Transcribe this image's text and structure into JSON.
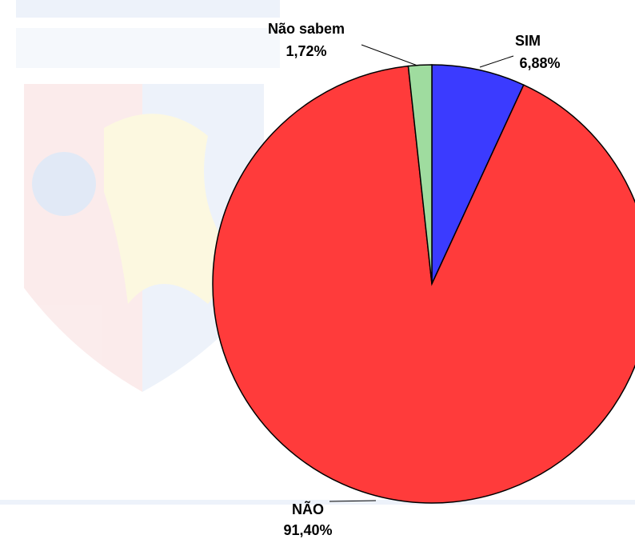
{
  "chart_data": {
    "type": "pie",
    "categories": [
      "SIM",
      "NÃO",
      "Não sabem"
    ],
    "values": [
      6.88,
      91.4,
      1.72
    ],
    "value_labels": [
      "6,88%",
      "91,40%",
      "1,72%"
    ],
    "colors": [
      "#3b3bff",
      "#ff3b3b",
      "#9fdc9f"
    ]
  }
}
